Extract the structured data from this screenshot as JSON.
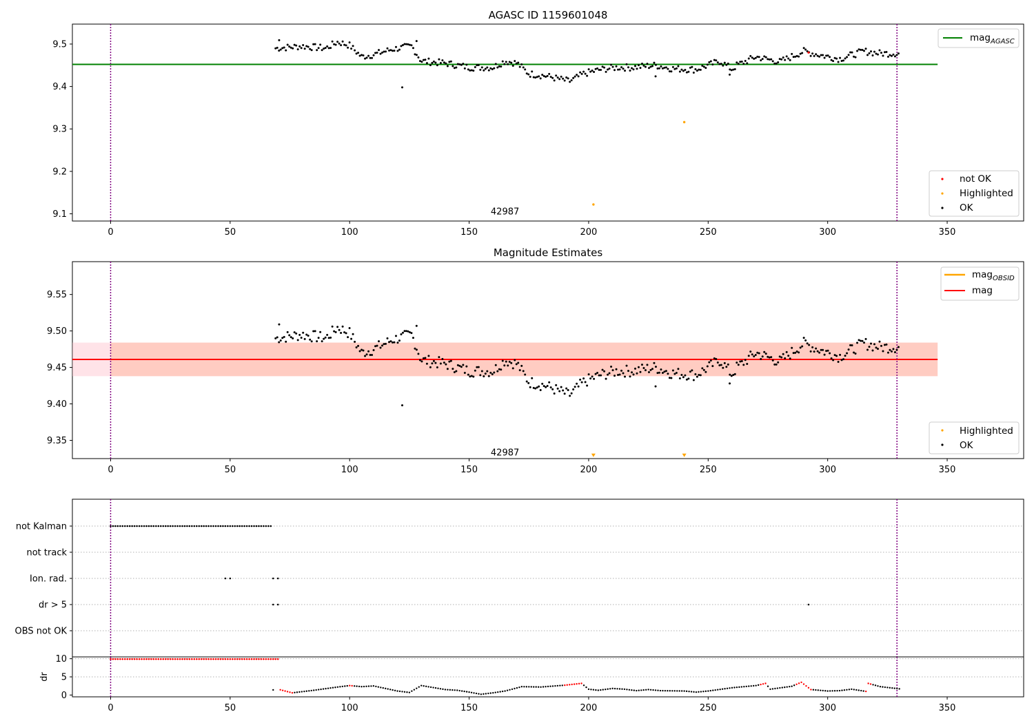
{
  "colors": {
    "ok": "#000000",
    "not_ok": "#ff0000",
    "highlighted": "#ffa500",
    "mag_agasc": "#008000",
    "mag_obsid": "#ffa500",
    "mag": "#ff0000",
    "vline": "#800080",
    "band_outer": "#ffc0cb",
    "band_inner": "#ffa07a",
    "grid": "#b0b0b0"
  },
  "chart_data": [
    {
      "type": "scatter",
      "title": "AGASC ID 1159601048",
      "xlim": [
        -16,
        382
      ],
      "ylim": [
        9.083,
        9.547
      ],
      "xticks": [
        "0",
        "50",
        "100",
        "150",
        "200",
        "250",
        "300",
        "350"
      ],
      "yticks": [
        "9.1",
        "9.2",
        "9.3",
        "9.4",
        "9.5"
      ],
      "vlines_x": [
        0,
        329
      ],
      "hline": {
        "name": "mag",
        "sub": "AGASC",
        "y": 9.452,
        "x_range": [
          -16,
          346
        ]
      },
      "annotation": {
        "text": "42987",
        "x": 165,
        "y": 9.105
      },
      "legend_top": [
        {
          "label": "mag",
          "sub": "AGASC"
        }
      ],
      "legend_bottom": [
        {
          "label": "not OK"
        },
        {
          "label": "Highlighted"
        },
        {
          "label": "OK"
        }
      ],
      "highlighted_points": [
        [
          202,
          9.122
        ],
        [
          240,
          9.316
        ]
      ],
      "not_ok_points": [
        [
          292,
          9.48
        ]
      ],
      "ok_series": {
        "x_start": 69,
        "x_end": 330,
        "anchors": [
          [
            69,
            9.49
          ],
          [
            80,
            9.495
          ],
          [
            90,
            9.49
          ],
          [
            95,
            9.505
          ],
          [
            100,
            9.497
          ],
          [
            105,
            9.47
          ],
          [
            110,
            9.475
          ],
          [
            118,
            9.488
          ],
          [
            126,
            9.495
          ],
          [
            130,
            9.46
          ],
          [
            140,
            9.455
          ],
          [
            150,
            9.445
          ],
          [
            160,
            9.445
          ],
          [
            165,
            9.46
          ],
          [
            170,
            9.455
          ],
          [
            175,
            9.43
          ],
          [
            182,
            9.425
          ],
          [
            192,
            9.412
          ],
          [
            198,
            9.43
          ],
          [
            205,
            9.44
          ],
          [
            212,
            9.445
          ],
          [
            218,
            9.445
          ],
          [
            228,
            9.45
          ],
          [
            235,
            9.442
          ],
          [
            245,
            9.44
          ],
          [
            255,
            9.46
          ],
          [
            260,
            9.44
          ],
          [
            262,
            9.45
          ],
          [
            270,
            9.47
          ],
          [
            280,
            9.458
          ],
          [
            290,
            9.483
          ],
          [
            296,
            9.475
          ],
          [
            305,
            9.465
          ],
          [
            315,
            9.483
          ],
          [
            322,
            9.478
          ],
          [
            330,
            9.478
          ]
        ],
        "jitter": 0.008,
        "seed": 7
      },
      "ok_outliers": [
        [
          122,
          9.398
        ],
        [
          228,
          9.424
        ],
        [
          259,
          9.428
        ],
        [
          70.5,
          9.509
        ],
        [
          128,
          9.507
        ]
      ]
    },
    {
      "type": "scatter",
      "title": "Magnitude Estimates",
      "xlim": [
        -16,
        382
      ],
      "ylim": [
        9.325,
        9.595
      ],
      "xticks": [
        "0",
        "50",
        "100",
        "150",
        "200",
        "250",
        "300",
        "350"
      ],
      "yticks": [
        "9.35",
        "9.40",
        "9.45",
        "9.50",
        "9.55"
      ],
      "vlines_x": [
        0,
        329
      ],
      "hline": {
        "name": "mag",
        "y": 9.461,
        "x_range": [
          -16,
          346
        ]
      },
      "band_outer": {
        "y_low": 9.438,
        "y_high": 9.484,
        "x_range": [
          -16,
          346
        ]
      },
      "band_inner": {
        "y_low": 9.438,
        "y_high": 9.484,
        "x_range": [
          0,
          346
        ]
      },
      "annotation": {
        "text": "42987",
        "x": 165,
        "y": 9.333
      },
      "legend_top": [
        {
          "label": "mag",
          "sub": "OBSID"
        },
        {
          "label": "mag"
        }
      ],
      "legend_bottom": [
        {
          "label": "Highlighted"
        },
        {
          "label": "OK"
        }
      ],
      "highlighted_markers": [
        [
          202,
          9.329
        ],
        [
          240,
          9.329
        ]
      ],
      "ok_series_ref": 0,
      "ok_outliers": [
        [
          122,
          9.398
        ],
        [
          228,
          9.424
        ],
        [
          259,
          9.428
        ],
        [
          70.5,
          9.509
        ],
        [
          128,
          9.507
        ]
      ]
    },
    {
      "type": "scatter",
      "title": "",
      "xlim": [
        -16,
        382
      ],
      "xticks": [
        "0",
        "50",
        "100",
        "150",
        "200",
        "250",
        "300",
        "350"
      ],
      "categories": [
        "not Kalman",
        "not track",
        "Ion. rad.",
        "dr > 5",
        "OBS not OK"
      ],
      "vlines_x": [
        0,
        329
      ],
      "flags": {
        "not Kalman": {
          "x_start": 0,
          "x_end": 67,
          "step": 1
        },
        "not track": [],
        "Ion. rad.": [
          48,
          50,
          68,
          70
        ],
        "dr > 5": [
          68,
          70,
          292
        ],
        "OBS not OK": []
      }
    },
    {
      "type": "scatter",
      "ylabel": "dr",
      "xlim": [
        -16,
        382
      ],
      "ylim": [
        -0.5,
        10.5
      ],
      "xticks": [
        "0",
        "50",
        "100",
        "150",
        "200",
        "250",
        "300",
        "350"
      ],
      "yticks": [
        "0",
        "5",
        "10"
      ],
      "vlines_x": [
        0,
        329
      ],
      "dr_red_flat": {
        "x_start": 0,
        "x_end": 70,
        "step": 1,
        "y": 9.9
      },
      "dr_black_anchors": [
        [
          68,
          1.4
        ],
        [
          70,
          1.6
        ],
        [
          76,
          0.6
        ],
        [
          85,
          1.3
        ],
        [
          95,
          2.2
        ],
        [
          100,
          2.6
        ],
        [
          105,
          2.3
        ],
        [
          110,
          2.5
        ],
        [
          115,
          1.8
        ],
        [
          120,
          1.1
        ],
        [
          125,
          0.7
        ],
        [
          130,
          2.6
        ],
        [
          140,
          1.5
        ],
        [
          145,
          1.3
        ],
        [
          150,
          0.8
        ],
        [
          155,
          0.2
        ],
        [
          160,
          0.6
        ],
        [
          165,
          1.1
        ],
        [
          168,
          1.6
        ],
        [
          172,
          2.3
        ],
        [
          180,
          2.2
        ],
        [
          190,
          2.7
        ],
        [
          197,
          3.2
        ],
        [
          200,
          1.6
        ],
        [
          204,
          1.3
        ],
        [
          210,
          1.8
        ],
        [
          215,
          1.6
        ],
        [
          220,
          1.2
        ],
        [
          225,
          1.5
        ],
        [
          230,
          1.2
        ],
        [
          240,
          1.1
        ],
        [
          245,
          0.8
        ],
        [
          250,
          1.1
        ],
        [
          260,
          2.0
        ],
        [
          270,
          2.6
        ],
        [
          274,
          3.2
        ],
        [
          276,
          1.6
        ],
        [
          285,
          2.4
        ],
        [
          289,
          3.5
        ],
        [
          293,
          1.5
        ],
        [
          300,
          1.1
        ],
        [
          305,
          1.2
        ],
        [
          310,
          1.6
        ],
        [
          316,
          1.0
        ],
        [
          317,
          3.2
        ],
        [
          322,
          2.3
        ],
        [
          330,
          1.7
        ]
      ],
      "dr_red_segments": [
        [
          71,
          76
        ],
        [
          100,
          101
        ],
        [
          190,
          197
        ],
        [
          272,
          274
        ],
        [
          287,
          293
        ],
        [
          316,
          318
        ]
      ]
    }
  ]
}
